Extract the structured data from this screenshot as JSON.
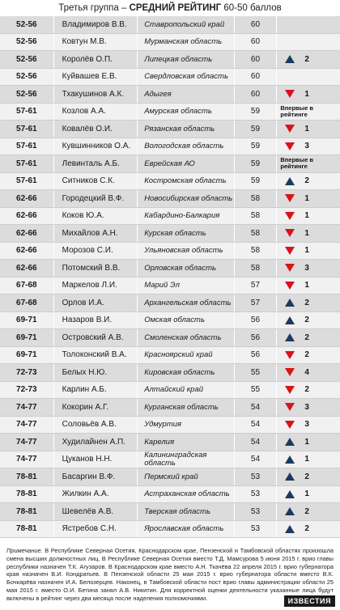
{
  "header": {
    "prefix": "Третья группа – ",
    "bold": "СРЕДНИЙ РЕЙТИНГ",
    "suffix": " 60-50 баллов"
  },
  "rows": [
    {
      "rank": "52-56",
      "name": "Владимиров В.В.",
      "region": "Ставропольский край",
      "score": "60",
      "dir": "",
      "delta": ""
    },
    {
      "rank": "52-56",
      "name": "Ковтун М.В.",
      "region": "Мурманская область",
      "score": "60",
      "dir": "",
      "delta": ""
    },
    {
      "rank": "52-56",
      "name": "Королёв О.П.",
      "region": "Липецкая область",
      "score": "60",
      "dir": "up",
      "delta": "2"
    },
    {
      "rank": "52-56",
      "name": "Куйвашев Е.В.",
      "region": "Свердловская область",
      "score": "60",
      "dir": "",
      "delta": ""
    },
    {
      "rank": "52-56",
      "name": "Тхакушинов А.К.",
      "region": "Адыгея",
      "score": "60",
      "dir": "down",
      "delta": "1"
    },
    {
      "rank": "57-61",
      "name": "Козлов А.А.",
      "region": "Амурская область",
      "score": "59",
      "dir": "new",
      "delta": "Впервые в рейтинге"
    },
    {
      "rank": "57-61",
      "name": "Ковалёв О.И.",
      "region": "Рязанская область",
      "score": "59",
      "dir": "down",
      "delta": "1"
    },
    {
      "rank": "57-61",
      "name": "Кувшинников О.А.",
      "region": "Вологодская область",
      "score": "59",
      "dir": "down",
      "delta": "3"
    },
    {
      "rank": "57-61",
      "name": "Левинталь А.Б.",
      "region": "Еврейская АО",
      "score": "59",
      "dir": "new",
      "delta": "Впервые в рейтинге"
    },
    {
      "rank": "57-61",
      "name": "Ситников С.К.",
      "region": "Костромская область",
      "score": "59",
      "dir": "up",
      "delta": "2"
    },
    {
      "rank": "62-66",
      "name": "Городецкий В.Ф.",
      "region": "Новосибирская область",
      "score": "58",
      "dir": "down",
      "delta": "1"
    },
    {
      "rank": "62-66",
      "name": "Коков Ю.А.",
      "region": "Кабардино-Балкария",
      "score": "58",
      "dir": "down",
      "delta": "1"
    },
    {
      "rank": "62-66",
      "name": "Михайлов А.Н.",
      "region": "Курская область",
      "score": "58",
      "dir": "down",
      "delta": "1"
    },
    {
      "rank": "62-66",
      "name": "Морозов С.И.",
      "region": "Ульяновская область",
      "score": "58",
      "dir": "down",
      "delta": "1"
    },
    {
      "rank": "62-66",
      "name": "Потомский В.В.",
      "region": "Орловская область",
      "score": "58",
      "dir": "down",
      "delta": "3"
    },
    {
      "rank": "67-68",
      "name": "Маркелов Л.И.",
      "region": "Марий Эл",
      "score": "57",
      "dir": "down",
      "delta": "1"
    },
    {
      "rank": "67-68",
      "name": "Орлов И.А.",
      "region": "Архангельская область",
      "score": "57",
      "dir": "up",
      "delta": "2"
    },
    {
      "rank": "69-71",
      "name": "Назаров В.И.",
      "region": "Омская область",
      "score": "56",
      "dir": "up",
      "delta": "2"
    },
    {
      "rank": "69-71",
      "name": "Островский А.В.",
      "region": "Смоленская область",
      "score": "56",
      "dir": "up",
      "delta": "2"
    },
    {
      "rank": "69-71",
      "name": "Толоконский В.А.",
      "region": "Красноярский край",
      "score": "56",
      "dir": "down",
      "delta": "2"
    },
    {
      "rank": "72-73",
      "name": "Белых Н.Ю.",
      "region": "Кировская область",
      "score": "55",
      "dir": "down",
      "delta": "4"
    },
    {
      "rank": "72-73",
      "name": "Карлин А.Б.",
      "region": "Алтайский край",
      "score": "55",
      "dir": "down",
      "delta": "2"
    },
    {
      "rank": "74-77",
      "name": "Кокорин А.Г.",
      "region": "Курганская область",
      "score": "54",
      "dir": "down",
      "delta": "3"
    },
    {
      "rank": "74-77",
      "name": "Соловьёв А.В.",
      "region": "Удмуртия",
      "score": "54",
      "dir": "down",
      "delta": "3"
    },
    {
      "rank": "74-77",
      "name": "Худилайнен А.П.",
      "region": "Карелия",
      "score": "54",
      "dir": "up",
      "delta": "1"
    },
    {
      "rank": "74-77",
      "name": "Цуканов Н.Н.",
      "region": "Калининградская область",
      "score": "54",
      "dir": "up",
      "delta": "1"
    },
    {
      "rank": "78-81",
      "name": "Басаргин В.Ф.",
      "region": "Пермский край",
      "score": "53",
      "dir": "up",
      "delta": "2"
    },
    {
      "rank": "78-81",
      "name": "Жилкин А.А.",
      "region": "Астраханская область",
      "score": "53",
      "dir": "up",
      "delta": "1"
    },
    {
      "rank": "78-81",
      "name": "Шевелёв А.В.",
      "region": "Тверская область",
      "score": "53",
      "dir": "up",
      "delta": "2"
    },
    {
      "rank": "78-81",
      "name": "Ястребов С.Н.",
      "region": "Ярославская область",
      "score": "53",
      "dir": "up",
      "delta": "2"
    }
  ],
  "note": {
    "label": "Примечание.",
    "text": " В Республике Северная Осетия, Краснодарском крае, Пензенской и Тамбовской областях произошла смена высших должностных лиц. В Республике Северная Осетия вместо Т.Д. Мамсурова 5 июня 2015 г. врио главы республики назначен Т.К. Агузаров. В Краснодарском крае вместо А.Н. Ткачёва 22 апреля 2015 г. врио губернатора края назначен В.И. Кондратьев. В Пензенской области 25 мая 2015 г. врио губернатора области вместо В.К. Бочкарёва назначен И.А. Белозерцев. Наконец, в Тамбовской области пост врио главы администрации области 25 мая 2015 г. вместо О.И. Бетина занял А.В. Никитин. Для корректной оценки деятельности указанные лица будут включены в рейтинг через два месяца после наделения полномочиями."
  },
  "logo": "ИЗВЕСТИЯ",
  "colors": {
    "up": "#1c3a5e",
    "down": "#d7141a",
    "row_odd": "#dcdcdc",
    "row_even": "#f1f1f1"
  }
}
